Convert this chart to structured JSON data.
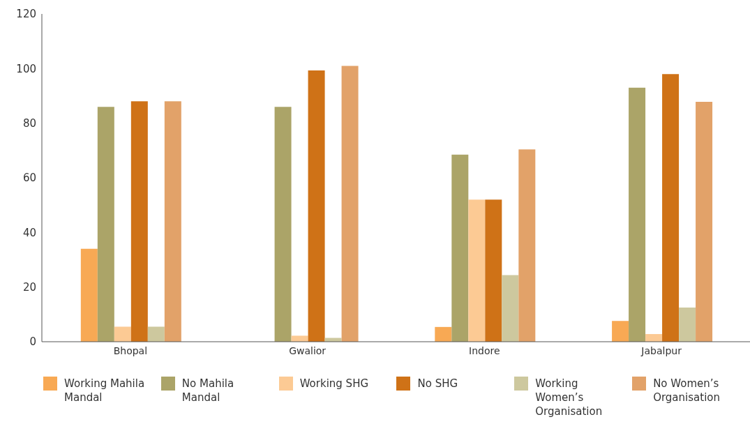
{
  "chart_data": {
    "type": "bar",
    "categories": [
      "Bhopal",
      "Gwalior",
      "Indore",
      "Jabalpur"
    ],
    "series": [
      {
        "name": "Working Mahila Mandal",
        "color": "#f8a954",
        "values": [
          34,
          0,
          5.4,
          7.6
        ]
      },
      {
        "name": "No Mahila Mandal",
        "color": "#aba468",
        "values": [
          86,
          86,
          68.5,
          93
        ]
      },
      {
        "name": "Working SHG",
        "color": "#fcca94",
        "values": [
          5.5,
          2.2,
          52,
          2.8
        ]
      },
      {
        "name": "No SHG",
        "color": "#cf7217",
        "values": [
          88,
          99.3,
          52,
          98
        ]
      },
      {
        "name": "Working Women’s Organisation",
        "color": "#cdc89e",
        "values": [
          5.5,
          1.4,
          24.4,
          12.5
        ]
      },
      {
        "name": "No Women’s Organisation",
        "color": "#e2a269",
        "values": [
          88,
          101,
          70.4,
          87.8
        ]
      }
    ],
    "ylim": [
      0,
      120
    ],
    "yticks": [
      0,
      20,
      40,
      60,
      80,
      100,
      120
    ],
    "grid": false,
    "legend": "bottom"
  }
}
